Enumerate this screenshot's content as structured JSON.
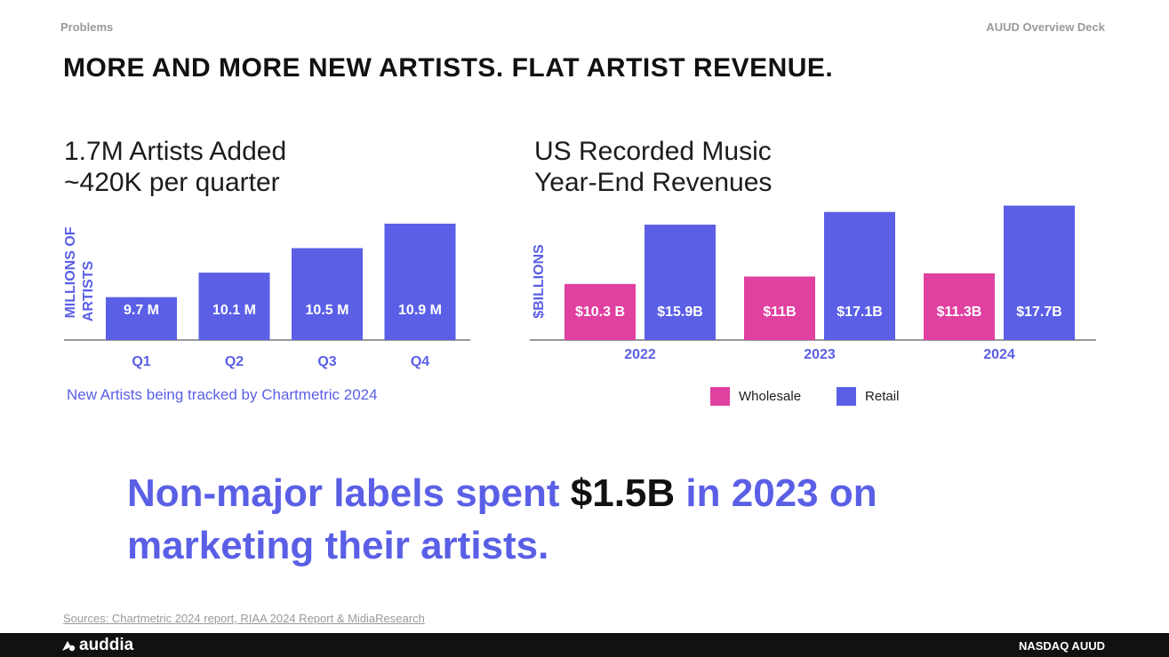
{
  "header": {
    "section": "Problems",
    "deck": "AUUD Overview Deck",
    "headline": "MORE AND MORE NEW ARTISTS. FLAT ARTIST REVENUE."
  },
  "colors": {
    "accent": "#5A5FE6",
    "wholesale": "#E0409F",
    "retail": "#5A5FE6",
    "dark": "#111111",
    "muted": "#9A9A9A"
  },
  "chart_data": [
    {
      "type": "bar",
      "title_line1": "1.7M Artists Added",
      "title_line2": "~420K per quarter",
      "ylabel_line1": "MILLIONS OF",
      "ylabel_line2": "ARTISTS",
      "xlabel": "",
      "categories": [
        "Q1",
        "Q2",
        "Q3",
        "Q4"
      ],
      "values": [
        9.7,
        10.1,
        10.5,
        10.9
      ],
      "value_labels": [
        "9.7 M",
        "10.1 M",
        "10.5 M",
        "10.9 M"
      ],
      "ylim": [
        9.0,
        11.0
      ],
      "grid": false,
      "note": "New Artists being tracked by Chartmetric 2024"
    },
    {
      "type": "bar",
      "title_line1": "US Recorded Music",
      "title_line2": "Year-End Revenues",
      "ylabel": "$BILLIONS",
      "categories": [
        "2022",
        "2023",
        "2024"
      ],
      "series": [
        {
          "name": "Wholesale",
          "values": [
            10.3,
            11.0,
            11.3
          ],
          "value_labels": [
            "$10.3 B",
            "$11B",
            "$11.3B"
          ]
        },
        {
          "name": "Retail",
          "values": [
            15.9,
            17.1,
            17.7
          ],
          "value_labels": [
            "$15.9B",
            "$17.1B",
            "$17.7B"
          ]
        }
      ],
      "ylim": [
        5.0,
        18.0
      ],
      "grid": false,
      "legend": "bottom-center"
    }
  ],
  "callout": {
    "part1": "Non-major labels spent ",
    "highlight": "$1.5B",
    "part2": " in 2023 on marketing their artists."
  },
  "footer": {
    "sources": "Sources: Chartmetric 2024 report, RIAA 2024 Report & MidiaResearch",
    "logo_text": "auddia",
    "logo_icon": "auddia-logo-icon",
    "ticker": "NASDAQ AUUD"
  }
}
